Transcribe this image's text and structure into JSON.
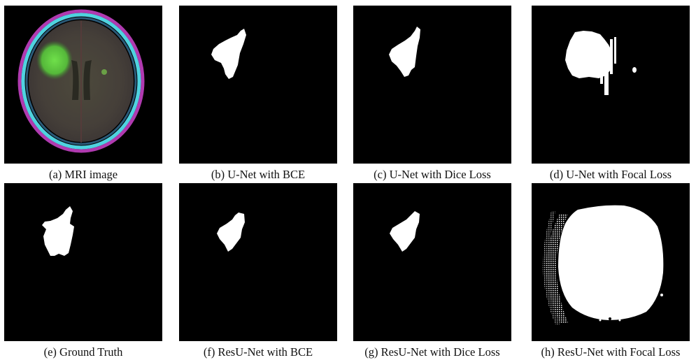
{
  "figure": {
    "panels": [
      {
        "id": "a",
        "caption": "(a) MRI image"
      },
      {
        "id": "b",
        "caption": "(b) U-Net with BCE"
      },
      {
        "id": "c",
        "caption": "(c) U-Net with Dice Loss"
      },
      {
        "id": "d",
        "caption": "(d) U-Net with Focal Loss"
      },
      {
        "id": "e",
        "caption": "(e) Ground Truth"
      },
      {
        "id": "f",
        "caption": "(f) ResU-Net with BCE"
      },
      {
        "id": "g",
        "caption": "(g) ResU-Net with Dice Loss"
      },
      {
        "id": "h",
        "caption": "(h) ResU-Net with Focal Loss"
      }
    ]
  }
}
